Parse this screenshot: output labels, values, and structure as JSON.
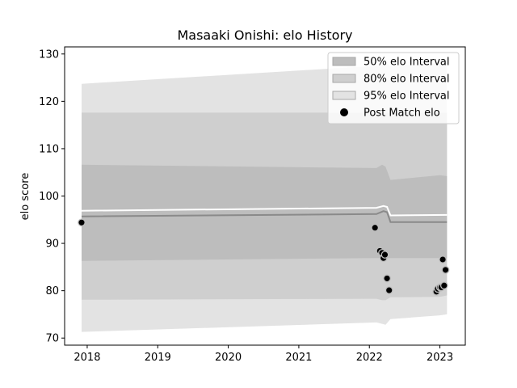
{
  "chart_data": {
    "type": "area",
    "title": "Masaaki Onishi: elo History",
    "xlabel": "",
    "ylabel": "elo score",
    "xlim": [
      2017.68,
      2023.36
    ],
    "ylim": [
      68.5,
      131.5
    ],
    "x_ticks": [
      2018,
      2019,
      2020,
      2021,
      2022,
      2023
    ],
    "x_tick_labels": [
      "2018",
      "2019",
      "2020",
      "2021",
      "2022",
      "2023"
    ],
    "y_ticks": [
      70,
      80,
      90,
      100,
      110,
      120,
      130
    ],
    "y_tick_labels": [
      "70",
      "80",
      "90",
      "100",
      "110",
      "120",
      "130"
    ],
    "grid": false,
    "legend": {
      "placement": "top-right",
      "entries": [
        "50% elo Interval",
        "80% elo Interval",
        "95% elo Interval",
        "Post Match elo"
      ]
    },
    "band_x": [
      2017.92,
      2022.1,
      2022.18,
      2022.23,
      2022.3,
      2023.0,
      2023.1
    ],
    "bands": [
      {
        "name": "95% elo Interval",
        "color": "#e3e3e3",
        "upper": [
          123.7,
          127.5,
          128.0,
          128.0,
          127.5,
          128.0,
          128.0
        ],
        "lower": [
          71.3,
          73.3,
          73.0,
          72.8,
          74.0,
          74.8,
          75.0
        ]
      },
      {
        "name": "80% elo Interval",
        "color": "#cfcfcf",
        "upper": [
          117.6,
          117.6,
          117.6,
          117.6,
          117.6,
          117.6,
          117.6
        ],
        "lower": [
          78.1,
          78.3,
          78.0,
          78.0,
          78.6,
          78.7,
          79.0
        ]
      },
      {
        "name": "50% elo Interval",
        "color": "#bdbdbd",
        "upper": [
          106.6,
          105.9,
          106.6,
          106.2,
          103.4,
          104.4,
          104.2
        ],
        "lower": [
          86.3,
          86.9,
          86.9,
          86.9,
          86.9,
          86.9,
          86.9
        ]
      }
    ],
    "mean_line": {
      "x": [
        2017.92,
        2022.1,
        2022.2,
        2022.25,
        2022.3,
        2023.1
      ],
      "y": [
        95.7,
        96.2,
        96.8,
        96.6,
        94.5,
        94.5
      ],
      "color": "#8a8a8a"
    },
    "upper_line": {
      "x": [
        2017.92,
        2022.1,
        2022.2,
        2022.25,
        2022.3,
        2023.1
      ],
      "y": [
        96.9,
        97.5,
        97.9,
        97.7,
        95.9,
        96.0
      ],
      "color": "#ffffff"
    },
    "points": {
      "name": "Post Match elo",
      "x": [
        2017.92,
        2022.08,
        2022.15,
        2022.18,
        2022.2,
        2022.22,
        2022.25,
        2022.28,
        2022.95,
        2022.97,
        2023.0,
        2023.02,
        2023.04,
        2023.06,
        2023.08
      ],
      "y": [
        94.4,
        93.3,
        88.4,
        88.0,
        86.9,
        87.6,
        82.6,
        80.1,
        79.8,
        80.4,
        80.7,
        80.7,
        86.6,
        81.1,
        84.4
      ]
    }
  }
}
